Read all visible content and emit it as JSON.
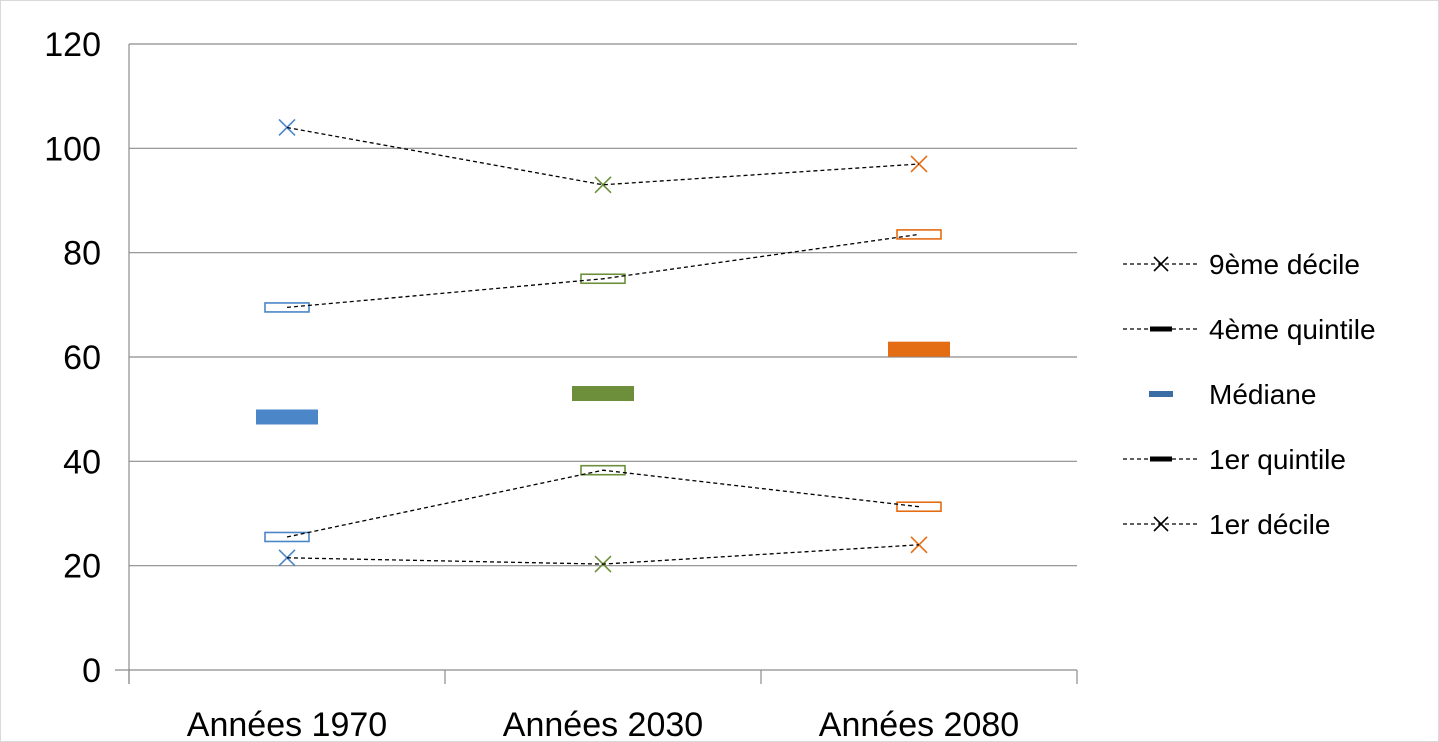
{
  "chart_data": {
    "type": "line",
    "title": "",
    "xlabel": "",
    "ylabel": "",
    "categories": [
      "Années 1970",
      "Années 2030",
      "Années 2080"
    ],
    "ylim": [
      0,
      120
    ],
    "yticks": [
      "0",
      "20",
      "40",
      "60",
      "80",
      "100",
      "120"
    ],
    "grid": true,
    "legend_position": "right",
    "category_colors": [
      "#4a86c8",
      "#6d8f3b",
      "#e46c12"
    ],
    "series": [
      {
        "name": "9ème décile",
        "marker": "x-icon",
        "line": "dashed",
        "values": [
          104,
          93,
          97
        ]
      },
      {
        "name": "4ème quintile",
        "marker": "hollow-rect-icon",
        "line": "dashed",
        "values": [
          69.5,
          75,
          83.5
        ]
      },
      {
        "name": "Médiane",
        "marker": "filled-rect-icon",
        "line": "none",
        "values": [
          48.5,
          53,
          61.5
        ]
      },
      {
        "name": "1er quintile",
        "marker": "hollow-rect-icon",
        "line": "dashed",
        "values": [
          25.5,
          38.3,
          31.3
        ]
      },
      {
        "name": "1er décile",
        "marker": "x-icon",
        "line": "dashed",
        "values": [
          21.5,
          20.3,
          24
        ]
      }
    ]
  }
}
